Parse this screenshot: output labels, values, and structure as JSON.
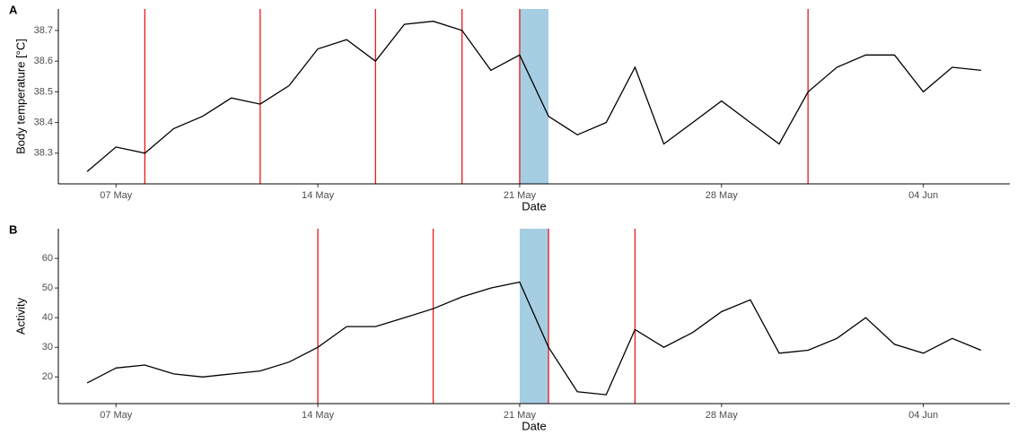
{
  "chart_data": [
    {
      "type": "line",
      "tag": "A",
      "ylabel": "Body temperature [°C]",
      "xlabel": "Date",
      "x": [
        "05-06",
        "05-07",
        "05-08",
        "05-09",
        "05-10",
        "05-11",
        "05-12",
        "05-13",
        "05-14",
        "05-15",
        "05-16",
        "05-17",
        "05-18",
        "05-19",
        "05-20",
        "05-21",
        "05-22",
        "05-23",
        "05-24",
        "05-25",
        "05-26",
        "05-27",
        "05-28",
        "05-29",
        "05-30",
        "05-31",
        "06-01",
        "06-02",
        "06-03",
        "06-04",
        "06-05",
        "06-06"
      ],
      "values": [
        38.24,
        38.32,
        38.3,
        38.38,
        38.42,
        38.48,
        38.46,
        38.52,
        38.64,
        38.67,
        38.6,
        38.72,
        38.73,
        38.7,
        38.57,
        38.62,
        38.42,
        38.36,
        38.4,
        38.58,
        38.33,
        38.4,
        38.47,
        38.4,
        38.33,
        38.5,
        38.58,
        38.62,
        38.62,
        38.5,
        38.58,
        38.57
      ],
      "color": "#000000",
      "xlim": [
        "05-05",
        "06-07"
      ],
      "xticks": [
        {
          "value": "05-07",
          "label": "07 May"
        },
        {
          "value": "05-14",
          "label": "14 May"
        },
        {
          "value": "05-21",
          "label": "21 May"
        },
        {
          "value": "05-28",
          "label": "28 May"
        },
        {
          "value": "06-04",
          "label": "04 Jun"
        }
      ],
      "ylim": [
        38.2,
        38.77
      ],
      "yticks": [
        38.3,
        38.4,
        38.5,
        38.6,
        38.7
      ],
      "vlines": [
        "05-08",
        "05-12",
        "05-16",
        "05-19",
        "05-21",
        "05-31"
      ],
      "vline_color": "#e41a1c",
      "shade": [
        "05-21",
        "05-22"
      ],
      "shade_color": "#a6cee3"
    },
    {
      "type": "line",
      "tag": "B",
      "ylabel": "Activity",
      "xlabel": "Date",
      "x": [
        "05-06",
        "05-07",
        "05-08",
        "05-09",
        "05-10",
        "05-11",
        "05-12",
        "05-13",
        "05-14",
        "05-15",
        "05-16",
        "05-17",
        "05-18",
        "05-19",
        "05-20",
        "05-21",
        "05-22",
        "05-23",
        "05-24",
        "05-25",
        "05-26",
        "05-27",
        "05-28",
        "05-29",
        "05-30",
        "05-31",
        "06-01",
        "06-02",
        "06-03",
        "06-04",
        "06-05",
        "06-06"
      ],
      "values": [
        18,
        23,
        24,
        21,
        20,
        21,
        22,
        25,
        30,
        37,
        37,
        40,
        43,
        47,
        50,
        52,
        30,
        15,
        14,
        36,
        30,
        35,
        42,
        46,
        28,
        29,
        33,
        40,
        31,
        28,
        33,
        29
      ],
      "color": "#000000",
      "xlim": [
        "05-05",
        "06-07"
      ],
      "xticks": [
        {
          "value": "05-07",
          "label": "07 May"
        },
        {
          "value": "05-14",
          "label": "14 May"
        },
        {
          "value": "05-21",
          "label": "21 May"
        },
        {
          "value": "05-28",
          "label": "28 May"
        },
        {
          "value": "06-04",
          "label": "04 Jun"
        }
      ],
      "ylim": [
        11,
        70
      ],
      "yticks": [
        20,
        30,
        40,
        50,
        60
      ],
      "vlines": [
        "05-14",
        "05-18",
        "05-22",
        "05-25"
      ],
      "vline_color": "#e41a1c",
      "shade": [
        "05-21",
        "05-22"
      ],
      "shade_color": "#a6cee3"
    }
  ]
}
